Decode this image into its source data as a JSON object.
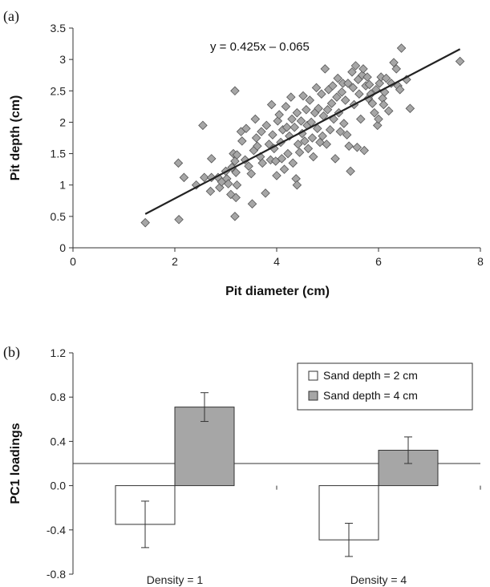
{
  "chart_data": [
    {
      "type": "scatter",
      "panel_label": "(a)",
      "xlabel": "Pit diameter (cm)",
      "ylabel": "Pit depth (cm)",
      "xlim": [
        0,
        8
      ],
      "ylim": [
        0,
        3.5
      ],
      "xticks": [
        "0",
        "2",
        "4",
        "6",
        "8"
      ],
      "yticks": [
        "0",
        "0.5",
        "1",
        "1.5",
        "2",
        "2.5",
        "3",
        "3.5"
      ],
      "trendline": {
        "label": "y = 0.425x – 0.065",
        "slope": 0.425,
        "intercept": -0.065,
        "x_range": [
          1.42,
          7.6
        ]
      },
      "marker_color": "#a6a6a6",
      "points": [
        [
          1.42,
          0.4
        ],
        [
          2.08,
          0.45
        ],
        [
          2.07,
          1.35
        ],
        [
          2.18,
          1.12
        ],
        [
          2.42,
          1.0
        ],
        [
          2.55,
          1.95
        ],
        [
          2.58,
          1.12
        ],
        [
          2.7,
          0.9
        ],
        [
          2.72,
          1.42
        ],
        [
          2.72,
          1.12
        ],
        [
          2.85,
          1.12
        ],
        [
          2.88,
          0.96
        ],
        [
          2.92,
          1.05
        ],
        [
          3.0,
          1.22
        ],
        [
          3.02,
          1.1
        ],
        [
          3.05,
          1.02
        ],
        [
          3.1,
          0.85
        ],
        [
          3.12,
          1.28
        ],
        [
          3.15,
          1.5
        ],
        [
          3.18,
          1.38
        ],
        [
          3.18,
          0.5
        ],
        [
          3.2,
          1.2
        ],
        [
          3.2,
          0.8
        ],
        [
          3.22,
          1.0
        ],
        [
          3.18,
          2.5
        ],
        [
          3.22,
          1.48
        ],
        [
          3.3,
          1.85
        ],
        [
          3.32,
          1.7
        ],
        [
          3.38,
          1.4
        ],
        [
          3.4,
          1.9
        ],
        [
          3.45,
          1.3
        ],
        [
          3.5,
          1.18
        ],
        [
          3.52,
          0.7
        ],
        [
          3.55,
          1.55
        ],
        [
          3.58,
          2.05
        ],
        [
          3.6,
          1.75
        ],
        [
          3.62,
          1.62
        ],
        [
          3.68,
          1.45
        ],
        [
          3.7,
          1.85
        ],
        [
          3.72,
          1.35
        ],
        [
          3.78,
          0.87
        ],
        [
          3.8,
          1.95
        ],
        [
          3.85,
          1.65
        ],
        [
          3.88,
          1.4
        ],
        [
          3.9,
          2.28
        ],
        [
          3.92,
          1.8
        ],
        [
          3.95,
          1.58
        ],
        [
          3.98,
          1.38
        ],
        [
          4.0,
          1.15
        ],
        [
          4.02,
          2.02
        ],
        [
          4.05,
          2.12
        ],
        [
          4.08,
          1.68
        ],
        [
          4.1,
          1.42
        ],
        [
          4.12,
          1.88
        ],
        [
          4.15,
          1.25
        ],
        [
          4.18,
          2.25
        ],
        [
          4.2,
          1.92
        ],
        [
          4.22,
          1.5
        ],
        [
          4.25,
          1.78
        ],
        [
          4.28,
          2.4
        ],
        [
          4.3,
          2.05
        ],
        [
          4.32,
          1.35
        ],
        [
          4.35,
          1.92
        ],
        [
          4.38,
          1.1
        ],
        [
          4.4,
          1.0
        ],
        [
          4.4,
          2.15
        ],
        [
          4.42,
          1.65
        ],
        [
          4.45,
          1.52
        ],
        [
          4.48,
          2.02
        ],
        [
          4.5,
          1.82
        ],
        [
          4.52,
          2.42
        ],
        [
          4.55,
          1.7
        ],
        [
          4.58,
          2.2
        ],
        [
          4.6,
          1.95
        ],
        [
          4.62,
          1.58
        ],
        [
          4.65,
          2.35
        ],
        [
          4.68,
          2.0
        ],
        [
          4.7,
          1.75
        ],
        [
          4.72,
          1.45
        ],
        [
          4.75,
          2.15
        ],
        [
          4.78,
          2.55
        ],
        [
          4.8,
          1.9
        ],
        [
          4.82,
          2.22
        ],
        [
          4.85,
          1.68
        ],
        [
          4.88,
          2.45
        ],
        [
          4.9,
          1.78
        ],
        [
          4.92,
          2.1
        ],
        [
          4.95,
          2.85
        ],
        [
          4.98,
          1.65
        ],
        [
          5.0,
          2.2
        ],
        [
          5.02,
          2.52
        ],
        [
          5.05,
          1.88
        ],
        [
          5.08,
          2.3
        ],
        [
          5.1,
          2.58
        ],
        [
          5.12,
          2.05
        ],
        [
          5.15,
          1.42
        ],
        [
          5.18,
          2.4
        ],
        [
          5.2,
          2.7
        ],
        [
          5.22,
          2.15
        ],
        [
          5.25,
          1.85
        ],
        [
          5.28,
          2.48
        ],
        [
          5.3,
          2.62
        ],
        [
          5.32,
          1.98
        ],
        [
          5.35,
          2.35
        ],
        [
          5.38,
          1.8
        ],
        [
          5.4,
          2.62
        ],
        [
          5.42,
          1.62
        ],
        [
          5.45,
          1.22
        ],
        [
          5.48,
          2.8
        ],
        [
          5.5,
          2.55
        ],
        [
          5.52,
          2.28
        ],
        [
          5.55,
          2.9
        ],
        [
          5.58,
          1.6
        ],
        [
          5.6,
          2.68
        ],
        [
          5.62,
          2.45
        ],
        [
          5.65,
          2.05
        ],
        [
          5.68,
          2.75
        ],
        [
          5.7,
          2.85
        ],
        [
          5.72,
          1.55
        ],
        [
          5.75,
          2.58
        ],
        [
          5.78,
          2.72
        ],
        [
          5.8,
          2.38
        ],
        [
          5.82,
          2.6
        ],
        [
          5.85,
          2.45
        ],
        [
          5.88,
          2.3
        ],
        [
          5.92,
          2.15
        ],
        [
          5.95,
          2.52
        ],
        [
          5.98,
          1.95
        ],
        [
          6.0,
          2.05
        ],
        [
          6.02,
          2.62
        ],
        [
          6.05,
          2.72
        ],
        [
          6.08,
          2.38
        ],
        [
          6.1,
          2.28
        ],
        [
          6.12,
          2.48
        ],
        [
          6.15,
          2.7
        ],
        [
          6.2,
          2.18
        ],
        [
          6.25,
          2.62
        ],
        [
          6.3,
          2.95
        ],
        [
          6.35,
          2.85
        ],
        [
          6.38,
          2.58
        ],
        [
          6.42,
          2.52
        ],
        [
          6.45,
          3.18
        ],
        [
          6.55,
          2.68
        ],
        [
          6.62,
          2.22
        ],
        [
          7.6,
          2.97
        ]
      ]
    },
    {
      "type": "bar",
      "panel_label": "(b)",
      "ylabel": "PC1 loadings",
      "ylim": [
        -0.8,
        1.2
      ],
      "yticks": [
        "1.2",
        "0.8",
        "0.4",
        "0.0",
        "-0.4",
        "-0.8"
      ],
      "categories": [
        "Density = 1",
        "Density = 4"
      ],
      "legend_position": "top-right",
      "series": [
        {
          "name": "Sand depth = 2 cm",
          "color": "#ffffff",
          "values": [
            -0.35,
            -0.49
          ],
          "errors": [
            0.21,
            0.15
          ]
        },
        {
          "name": "Sand depth = 4 cm",
          "color": "#a6a6a6",
          "values": [
            0.71,
            0.32
          ],
          "errors": [
            0.13,
            0.12
          ]
        }
      ]
    }
  ]
}
